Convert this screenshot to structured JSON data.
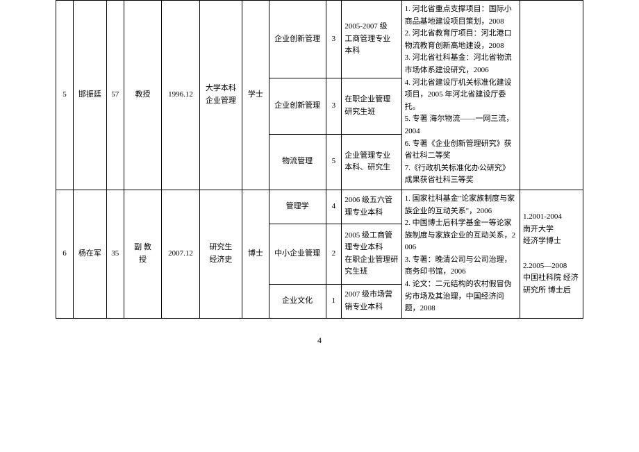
{
  "page_number": "4",
  "table": {
    "columns_count": 12,
    "rows": [
      {
        "id": "5",
        "name": "邯振廷",
        "age": "57",
        "title": "教授",
        "date": "1996.12",
        "edu_origin": "大学本科\n企业管理",
        "degree": "学士",
        "notes_col12": "",
        "courses": [
          {
            "course": "企业创新管理",
            "num": "3",
            "class": "2005-2007  级\n工商管理专业\n本科"
          },
          {
            "course": "企业创新管理",
            "num": "3",
            "class": "在职企业管理\n研究生班"
          },
          {
            "course": "物流管理",
            "num": "5",
            "class": "企业管理专业\n本科、研究生"
          }
        ],
        "pubs": "1. 河北省重点支撑项目：国际小商品基地建设项目策划，2008\n2. 河北省教育厅项目：河北港口物流教育创新高地建设，2008\n3. 河北省社科基金：河北省物流市场体系建设研究，2006\n4. 河北省建设厅机关标准化建设项目，2005 年河北省建设厅委托。\n5. 专著  海尔物流——一网三流，2004\n6. 专著《企业创新管理研究》获省社科二等奖\n7.《行政机关标准化办公研究》成果获省社科三等奖"
      },
      {
        "id": "6",
        "name": "杨在军",
        "age": "35",
        "title": "副  教\n授",
        "date": "2007.12",
        "edu_origin": "研究生\n经济史",
        "degree": "博士",
        "notes_col12": "1.2001-2004\n南开大学\n经济学博士\n\n2.2005—2008\n中国社科院 经济研究所 博士后",
        "courses": [
          {
            "course": "管理学",
            "num": "4",
            "class": "2006 级五六管\n理专业本科"
          },
          {
            "course": "中小企业管理",
            "num": "2",
            "class": "2005 级工商管理专业本科\n在职企业管理研究生班"
          },
          {
            "course": "企业文化",
            "num": "1",
            "class": "2007 级市场营\n销专业本科"
          }
        ],
        "pubs": "1. 国家社科基金\"论家族制度与家族企业的互动关系\"，2006\n2. 中国博士后科学基金一等论家族制度与家族企业的互动关系，2006\n3. 专著：晚清公司与公司治理，商务印书馆，2006\n4. 论文：二元结构的农村假冒伪劣市场及其治理，中国经济问题，2008"
      }
    ]
  }
}
